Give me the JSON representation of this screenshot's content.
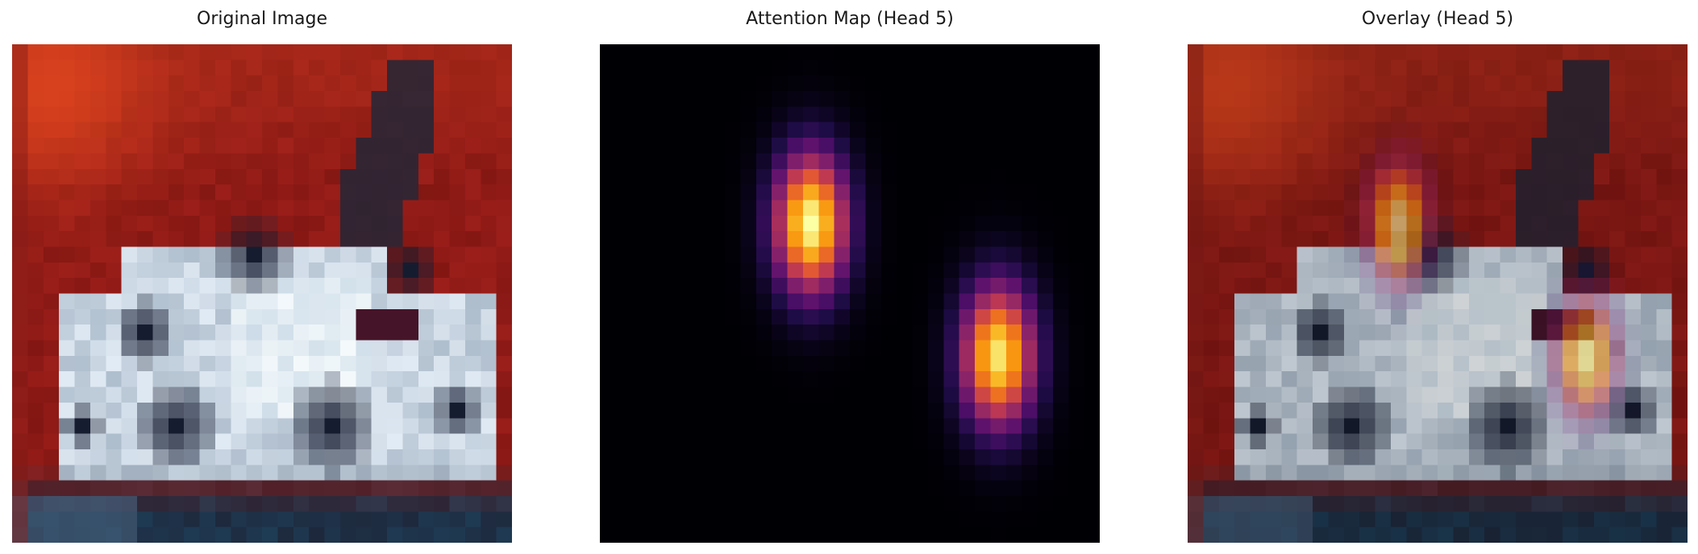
{
  "figure": {
    "panels": [
      {
        "title": "Original Image"
      },
      {
        "title": "Attention Map (Head 5)"
      },
      {
        "title": "Overlay (Head 5)"
      }
    ]
  },
  "chart_data": [
    {
      "type": "image",
      "title": "Original Image",
      "grid": false,
      "axes": "off",
      "resolution": [
        32,
        32
      ]
    },
    {
      "type": "heatmap",
      "title": "Attention Map (Head 5)",
      "colormap": "inferno",
      "grid": false,
      "axes": "off",
      "resolution": [
        32,
        32
      ],
      "peaks": [
        {
          "col": 13.5,
          "row": 11.5,
          "spread_col": 1.6,
          "spread_row": 3.1,
          "value": 1.0
        },
        {
          "col": 25.5,
          "row": 20.0,
          "spread_col": 1.6,
          "spread_row": 3.1,
          "value": 0.95
        }
      ]
    },
    {
      "type": "image",
      "title": "Overlay (Head 5)",
      "grid": false,
      "axes": "off",
      "resolution": [
        32,
        32
      ],
      "colormap": "inferno",
      "overlay_alpha": 0.5
    }
  ]
}
